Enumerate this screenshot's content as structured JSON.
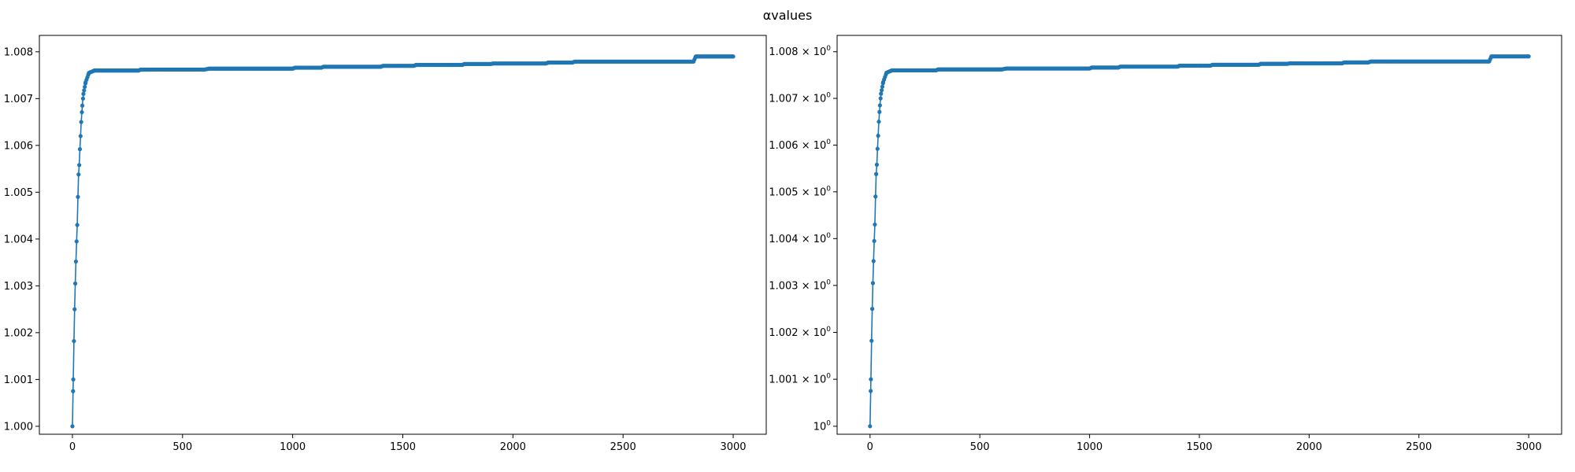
{
  "figure": {
    "title": "αvalues"
  },
  "chart_data": [
    {
      "type": "line",
      "title": "",
      "xlabel": "",
      "ylabel": "",
      "xlim": [
        -150,
        3150
      ],
      "ylim": [
        0.99983,
        1.00835
      ],
      "y_scale": "linear",
      "grid": false,
      "line_color": "#1f77b4",
      "marker": "circle",
      "x_ticks": [
        0,
        500,
        1000,
        1500,
        2000,
        2500,
        3000
      ],
      "x_tick_labels": [
        "0",
        "500",
        "1000",
        "1500",
        "2000",
        "2500",
        "3000"
      ],
      "y_ticks": [
        1.0,
        1.001,
        1.002,
        1.003,
        1.004,
        1.005,
        1.006,
        1.007,
        1.008
      ],
      "y_tick_labels": [
        "1.000",
        "1.001",
        "1.002",
        "1.003",
        "1.004",
        "1.005",
        "1.006",
        "1.007",
        "1.008"
      ],
      "series": [
        {
          "values_description_free": true,
          "x": [
            0,
            4,
            7,
            10,
            13,
            16,
            19,
            22,
            25,
            28,
            31,
            34,
            37,
            40,
            45,
            50,
            60,
            75,
            100,
            150,
            300,
            310,
            600,
            620,
            1000,
            1010,
            1130,
            1140,
            1400,
            1410,
            1550,
            1560,
            1770,
            1780,
            1900,
            1910,
            2150,
            2160,
            2270,
            2280,
            2820,
            2830,
            3000
          ],
          "y": [
            1.0,
            1.001,
            1.00182,
            1.0025,
            1.00305,
            1.00352,
            1.00395,
            1.0043,
            1.0049,
            1.00538,
            1.00558,
            1.00592,
            1.0062,
            1.0065,
            1.00685,
            1.0071,
            1.00735,
            1.00755,
            1.0076,
            1.0076,
            1.0076,
            1.00762,
            1.00762,
            1.00764,
            1.00764,
            1.00766,
            1.00766,
            1.00768,
            1.00768,
            1.0077,
            1.0077,
            1.00772,
            1.00772,
            1.00774,
            1.00774,
            1.00775,
            1.00775,
            1.00777,
            1.00777,
            1.00779,
            1.00779,
            1.0079,
            1.0079
          ]
        }
      ]
    },
    {
      "type": "line",
      "title": "",
      "xlabel": "",
      "ylabel": "",
      "xlim": [
        -150,
        3150
      ],
      "ylim": [
        0.99983,
        1.00835
      ],
      "y_scale": "log",
      "grid": false,
      "line_color": "#1f77b4",
      "marker": "circle",
      "x_ticks": [
        0,
        500,
        1000,
        1500,
        2000,
        2500,
        3000
      ],
      "x_tick_labels": [
        "0",
        "500",
        "1000",
        "1500",
        "2000",
        "2500",
        "3000"
      ],
      "y_ticks": [
        1.0,
        1.001,
        1.002,
        1.003,
        1.004,
        1.005,
        1.006,
        1.007,
        1.008
      ],
      "y_tick_labels": [
        {
          "base": "10",
          "exp": "0"
        },
        {
          "base": "1.001 × 10",
          "exp": "0"
        },
        {
          "base": "1.002 × 10",
          "exp": "0"
        },
        {
          "base": "1.003 × 10",
          "exp": "0"
        },
        {
          "base": "1.004 × 10",
          "exp": "0"
        },
        {
          "base": "1.005 × 10",
          "exp": "0"
        },
        {
          "base": "1.006 × 10",
          "exp": "0"
        },
        {
          "base": "1.007 × 10",
          "exp": "0"
        },
        {
          "base": "1.008 × 10",
          "exp": "0"
        }
      ],
      "series": [
        {
          "x": [
            0,
            4,
            7,
            10,
            13,
            16,
            19,
            22,
            25,
            28,
            31,
            34,
            37,
            40,
            45,
            50,
            60,
            75,
            100,
            150,
            300,
            310,
            600,
            620,
            1000,
            1010,
            1130,
            1140,
            1400,
            1410,
            1550,
            1560,
            1770,
            1780,
            1900,
            1910,
            2150,
            2160,
            2270,
            2280,
            2820,
            2830,
            3000
          ],
          "y": [
            1.0,
            1.001,
            1.00182,
            1.0025,
            1.00305,
            1.00352,
            1.00395,
            1.0043,
            1.0049,
            1.00538,
            1.00558,
            1.00592,
            1.0062,
            1.0065,
            1.00685,
            1.0071,
            1.00735,
            1.00755,
            1.0076,
            1.0076,
            1.0076,
            1.00762,
            1.00762,
            1.00764,
            1.00764,
            1.00766,
            1.00766,
            1.00768,
            1.00768,
            1.0077,
            1.0077,
            1.00772,
            1.00772,
            1.00774,
            1.00774,
            1.00775,
            1.00775,
            1.00777,
            1.00777,
            1.00779,
            1.00779,
            1.0079,
            1.0079
          ]
        }
      ]
    }
  ]
}
